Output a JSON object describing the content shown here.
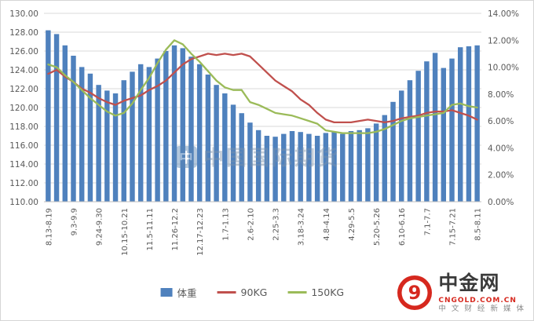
{
  "chart_data": {
    "type": "combo",
    "title": "",
    "x_tick_labels": [
      "8.13-8.19",
      "9.3-9.9",
      "9.24-9.30",
      "10.15-10.21",
      "11.5-11.11",
      "11.26-12.2",
      "12.17-12.23",
      "1.7-1.13",
      "2.6-2.10",
      "2.25-3.3",
      "3.18-3.24",
      "4.8-4.14",
      "4.29-5.5",
      "5.20-5.26",
      "6.10-6.16",
      "7.1-7.7",
      "7.15-7.21",
      "8.5-8.11"
    ],
    "x_tick_every": 3,
    "left_axis": {
      "min": 110,
      "max": 130,
      "step": 2
    },
    "right_axis": {
      "min": 0,
      "max": 14,
      "step": 2
    },
    "left_ticks": [
      "130.00",
      "128.00",
      "126.00",
      "124.00",
      "122.00",
      "120.00",
      "118.00",
      "116.00",
      "114.00",
      "112.00",
      "110.00"
    ],
    "right_ticks": [
      "14.00%",
      "12.00%",
      "10.00%",
      "8.00%",
      "6.00%",
      "4.00%",
      "2.00%",
      "0.00%"
    ],
    "grid": true,
    "legend_position": "bottom",
    "series": [
      {
        "name": "体重",
        "type": "bar",
        "axis": "left",
        "color": "#4F81BD",
        "values": [
          128.2,
          127.8,
          126.6,
          125.5,
          124.3,
          123.6,
          122.4,
          121.8,
          121.5,
          122.9,
          123.8,
          124.6,
          124.3,
          125.2,
          126.0,
          126.6,
          126.3,
          125.4,
          124.6,
          123.5,
          122.4,
          121.5,
          120.3,
          119.4,
          118.4,
          117.6,
          117.0,
          116.9,
          117.2,
          117.5,
          117.4,
          117.2,
          117.0,
          117.3,
          117.4,
          117.2,
          117.5,
          117.6,
          117.8,
          118.3,
          119.2,
          120.6,
          121.8,
          122.9,
          123.9,
          124.9,
          125.8,
          124.2,
          125.2,
          126.4,
          126.5,
          126.6
        ]
      },
      {
        "name": "90KG",
        "type": "line",
        "axis": "right",
        "color": "#C0504D",
        "values": [
          9.5,
          9.8,
          9.3,
          8.9,
          8.4,
          8.1,
          7.7,
          7.4,
          7.2,
          7.5,
          7.7,
          7.9,
          8.3,
          8.6,
          9.0,
          9.6,
          10.2,
          10.6,
          10.8,
          11.0,
          10.9,
          11.0,
          10.9,
          11.0,
          10.8,
          10.2,
          9.6,
          9.0,
          8.6,
          8.2,
          7.6,
          7.2,
          6.6,
          6.1,
          5.9,
          5.9,
          5.9,
          6.0,
          6.1,
          6.0,
          5.9,
          6.0,
          6.2,
          6.3,
          6.4,
          6.6,
          6.7,
          6.7,
          6.8,
          6.6,
          6.4,
          6.1
        ]
      },
      {
        "name": "150KG",
        "type": "line",
        "axis": "right",
        "color": "#9BBB59",
        "values": [
          10.2,
          10.0,
          9.4,
          8.9,
          8.3,
          7.7,
          7.2,
          6.7,
          6.4,
          6.6,
          7.3,
          8.3,
          9.2,
          10.3,
          11.3,
          12.0,
          11.7,
          11.0,
          10.4,
          9.7,
          9.0,
          8.5,
          8.3,
          8.3,
          7.4,
          7.2,
          6.9,
          6.6,
          6.5,
          6.4,
          6.2,
          6.0,
          5.8,
          5.3,
          5.2,
          5.1,
          5.1,
          5.1,
          5.1,
          5.2,
          5.4,
          5.7,
          6.0,
          6.2,
          6.3,
          6.4,
          6.5,
          6.6,
          7.2,
          7.3,
          7.1,
          7.0
        ]
      }
    ],
    "colors": {
      "grid": "#d9d9d9",
      "axis": "#bfbfbf",
      "tick_text": "#595959"
    }
  },
  "watermark": {
    "icon_glyph": "中",
    "text": "中国国际期货"
  },
  "logo": {
    "title": "中金网",
    "url": "CNGOLD.COM.CN",
    "tagline": "中 文 财 经 新 媒 体",
    "accent": "#d6281e"
  }
}
